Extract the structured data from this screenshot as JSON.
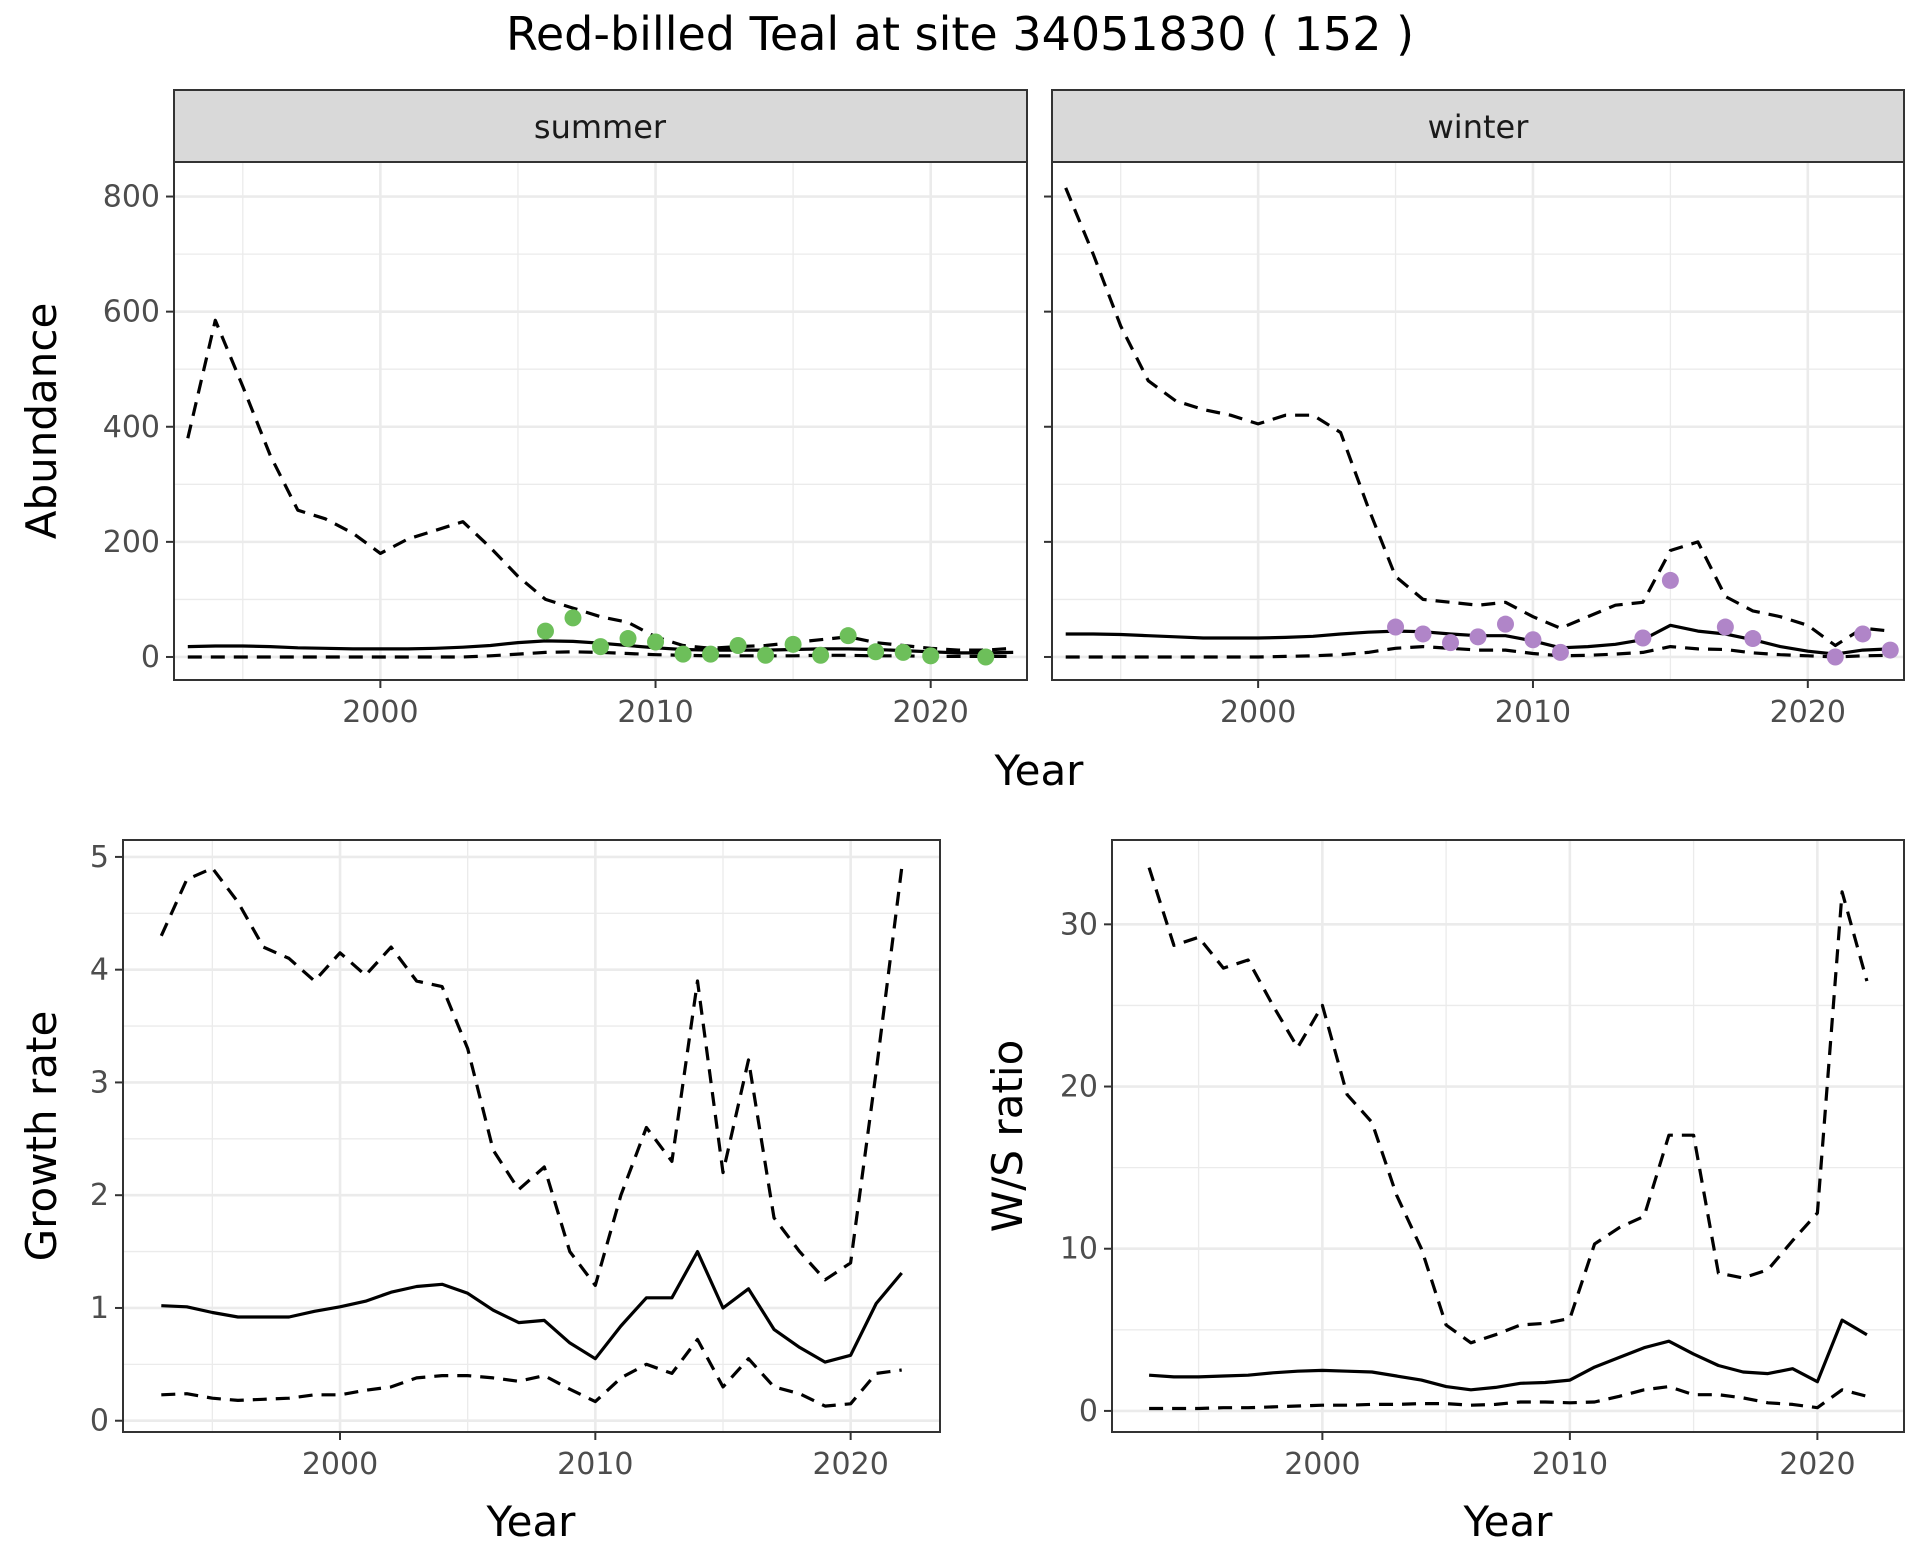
{
  "page": {
    "title": "Red-billed Teal at site 34051830 ( 152 )"
  },
  "chart_data": [
    {
      "type": "line",
      "facet": "summer",
      "xlabel": "Year",
      "ylabel": "Abundance",
      "xlim": [
        1992.5,
        2023.5
      ],
      "ylim": [
        -40,
        860
      ],
      "xticks": [
        2000,
        2010,
        2020
      ],
      "xticks_minor": [
        1995,
        2005,
        2015
      ],
      "yticks": [
        0,
        200,
        400,
        600,
        800
      ],
      "yticks_minor": [
        100,
        300,
        500,
        700
      ],
      "grid": true,
      "point_color": "#6dbf5a",
      "series": [
        {
          "style": "dashed",
          "x": [
            1993,
            1994,
            1995,
            1996,
            1997,
            1998,
            1999,
            2000,
            2001,
            2002,
            2003,
            2004,
            2005,
            2006,
            2007,
            2008,
            2009,
            2010,
            2011,
            2012,
            2013,
            2014,
            2015,
            2016,
            2017,
            2018,
            2019,
            2020,
            2021,
            2022,
            2023
          ],
          "values": [
            380,
            585,
            470,
            350,
            255,
            240,
            215,
            180,
            205,
            220,
            235,
            190,
            140,
            100,
            85,
            70,
            60,
            35,
            20,
            15,
            18,
            20,
            25,
            30,
            35,
            25,
            20,
            15,
            12,
            12,
            15
          ]
        },
        {
          "style": "solid",
          "x": [
            1993,
            1994,
            1995,
            1996,
            1997,
            1998,
            1999,
            2000,
            2001,
            2002,
            2003,
            2004,
            2005,
            2006,
            2007,
            2008,
            2009,
            2010,
            2011,
            2012,
            2013,
            2014,
            2015,
            2016,
            2017,
            2018,
            2019,
            2020,
            2021,
            2022,
            2023
          ],
          "values": [
            18,
            19,
            19,
            18,
            16,
            15,
            14,
            14,
            14,
            15,
            17,
            20,
            25,
            28,
            27,
            24,
            20,
            16,
            13,
            12,
            12,
            12,
            13,
            14,
            14,
            13,
            11,
            9,
            7,
            7,
            8
          ]
        },
        {
          "style": "dashed",
          "x": [
            1993,
            1994,
            1995,
            1996,
            1997,
            1998,
            1999,
            2000,
            2001,
            2002,
            2003,
            2004,
            2005,
            2006,
            2007,
            2008,
            2009,
            2010,
            2011,
            2012,
            2013,
            2014,
            2015,
            2016,
            2017,
            2018,
            2019,
            2020,
            2021,
            2022,
            2023
          ],
          "values": [
            0,
            0,
            0,
            0,
            0,
            0,
            0,
            0,
            0,
            0,
            0,
            2,
            5,
            8,
            9,
            8,
            6,
            4,
            3,
            2,
            2,
            2,
            2,
            3,
            3,
            2,
            2,
            1,
            1,
            1,
            1
          ]
        }
      ],
      "points": {
        "x": [
          2006,
          2007,
          2008,
          2009,
          2010,
          2011,
          2012,
          2013,
          2014,
          2015,
          2016,
          2017,
          2018,
          2019,
          2020,
          2022
        ],
        "values": [
          45,
          68,
          18,
          32,
          26,
          5,
          5,
          20,
          3,
          22,
          3,
          37,
          9,
          8,
          2,
          0
        ]
      }
    },
    {
      "type": "line",
      "facet": "winter",
      "xlabel": "Year",
      "ylabel": "Abundance",
      "xlim": [
        1992.5,
        2023.5
      ],
      "ylim": [
        -40,
        860
      ],
      "xticks": [
        2000,
        2010,
        2020
      ],
      "xticks_minor": [
        1995,
        2005,
        2015
      ],
      "yticks": [
        0,
        200,
        400,
        600,
        800
      ],
      "yticks_minor": [
        100,
        300,
        500,
        700
      ],
      "grid": true,
      "point_color": "#b085c8",
      "series": [
        {
          "style": "dashed",
          "x": [
            1993,
            1994,
            1995,
            1996,
            1997,
            1998,
            1999,
            2000,
            2001,
            2002,
            2003,
            2004,
            2005,
            2006,
            2007,
            2008,
            2009,
            2010,
            2011,
            2012,
            2013,
            2014,
            2015,
            2016,
            2017,
            2018,
            2019,
            2020,
            2021,
            2022,
            2023
          ],
          "values": [
            815,
            700,
            575,
            480,
            445,
            430,
            420,
            405,
            420,
            420,
            390,
            260,
            140,
            100,
            95,
            90,
            95,
            70,
            50,
            70,
            90,
            95,
            185,
            200,
            105,
            80,
            70,
            55,
            20,
            50,
            45
          ]
        },
        {
          "style": "solid",
          "x": [
            1993,
            1994,
            1995,
            1996,
            1997,
            1998,
            1999,
            2000,
            2001,
            2002,
            2003,
            2004,
            2005,
            2006,
            2007,
            2008,
            2009,
            2010,
            2011,
            2012,
            2013,
            2014,
            2015,
            2016,
            2017,
            2018,
            2019,
            2020,
            2021,
            2022,
            2023
          ],
          "values": [
            40,
            40,
            39,
            37,
            35,
            33,
            33,
            33,
            34,
            36,
            40,
            43,
            45,
            44,
            40,
            37,
            37,
            28,
            16,
            18,
            22,
            30,
            55,
            45,
            40,
            30,
            18,
            10,
            5,
            12,
            14
          ]
        },
        {
          "style": "dashed",
          "x": [
            1993,
            1994,
            1995,
            1996,
            1997,
            1998,
            1999,
            2000,
            2001,
            2002,
            2003,
            2004,
            2005,
            2006,
            2007,
            2008,
            2009,
            2010,
            2011,
            2012,
            2013,
            2014,
            2015,
            2016,
            2017,
            2018,
            2019,
            2020,
            2021,
            2022,
            2023
          ],
          "values": [
            0,
            0,
            0,
            0,
            0,
            0,
            0,
            0,
            1,
            2,
            4,
            8,
            15,
            18,
            15,
            12,
            12,
            6,
            2,
            3,
            5,
            8,
            18,
            14,
            13,
            7,
            4,
            2,
            0,
            2,
            3
          ]
        }
      ],
      "points": {
        "x": [
          2005,
          2006,
          2007,
          2008,
          2009,
          2010,
          2011,
          2014,
          2015,
          2017,
          2018,
          2021,
          2022,
          2023
        ],
        "values": [
          52,
          40,
          25,
          35,
          57,
          30,
          8,
          33,
          133,
          52,
          32,
          0,
          40,
          12
        ]
      }
    },
    {
      "type": "line",
      "xlabel": "Year",
      "ylabel": "Growth rate",
      "xlim": [
        1991.5,
        2023.5
      ],
      "ylim": [
        -0.1,
        5.15
      ],
      "xticks": [
        2000,
        2010,
        2020
      ],
      "xticks_minor": [
        1995,
        2005,
        2015
      ],
      "yticks": [
        0,
        1,
        2,
        3,
        4,
        5
      ],
      "yticks_minor": [
        0.5,
        1.5,
        2.5,
        3.5,
        4.5
      ],
      "grid": true,
      "series": [
        {
          "style": "dashed",
          "x": [
            1993,
            1994,
            1995,
            1996,
            1997,
            1998,
            1999,
            2000,
            2001,
            2002,
            2003,
            2004,
            2005,
            2006,
            2007,
            2008,
            2009,
            2010,
            2011,
            2012,
            2013,
            2014,
            2015,
            2016,
            2017,
            2018,
            2019,
            2020,
            2021,
            2022
          ],
          "values": [
            4.3,
            4.8,
            4.9,
            4.6,
            4.2,
            4.1,
            3.9,
            4.15,
            3.95,
            4.2,
            3.9,
            3.85,
            3.3,
            2.4,
            2.05,
            2.25,
            1.5,
            1.2,
            2.0,
            2.6,
            2.3,
            3.9,
            2.2,
            3.2,
            1.8,
            1.5,
            1.25,
            1.4,
            3.1,
            4.9
          ]
        },
        {
          "style": "solid",
          "x": [
            1993,
            1994,
            1995,
            1996,
            1997,
            1998,
            1999,
            2000,
            2001,
            2002,
            2003,
            2004,
            2005,
            2006,
            2007,
            2008,
            2009,
            2010,
            2011,
            2012,
            2013,
            2014,
            2015,
            2016,
            2017,
            2018,
            2019,
            2020,
            2021,
            2022
          ],
          "values": [
            1.02,
            1.01,
            0.96,
            0.92,
            0.92,
            0.92,
            0.97,
            1.01,
            1.06,
            1.14,
            1.19,
            1.21,
            1.13,
            0.98,
            0.87,
            0.89,
            0.69,
            0.55,
            0.84,
            1.09,
            1.09,
            1.5,
            1.0,
            1.17,
            0.81,
            0.65,
            0.52,
            0.58,
            1.04,
            1.31
          ]
        },
        {
          "style": "dashed",
          "x": [
            1993,
            1994,
            1995,
            1996,
            1997,
            1998,
            1999,
            2000,
            2001,
            2002,
            2003,
            2004,
            2005,
            2006,
            2007,
            2008,
            2009,
            2010,
            2011,
            2012,
            2013,
            2014,
            2015,
            2016,
            2017,
            2018,
            2019,
            2020,
            2021,
            2022
          ],
          "values": [
            0.23,
            0.24,
            0.2,
            0.18,
            0.19,
            0.2,
            0.23,
            0.23,
            0.27,
            0.3,
            0.38,
            0.4,
            0.4,
            0.38,
            0.35,
            0.4,
            0.28,
            0.17,
            0.38,
            0.5,
            0.42,
            0.72,
            0.3,
            0.55,
            0.3,
            0.24,
            0.13,
            0.15,
            0.42,
            0.45
          ]
        }
      ]
    },
    {
      "type": "line",
      "xlabel": "Year",
      "ylabel": "W/S ratio",
      "xlim": [
        1991.5,
        2023.5
      ],
      "ylim": [
        -1.3,
        35.2
      ],
      "xticks": [
        2000,
        2010,
        2020
      ],
      "xticks_minor": [
        1995,
        2005,
        2015
      ],
      "yticks": [
        0,
        10,
        20,
        30
      ],
      "yticks_minor": [
        5,
        15,
        25
      ],
      "grid": true,
      "series": [
        {
          "style": "dashed",
          "x": [
            1993,
            1994,
            1995,
            1996,
            1997,
            1998,
            1999,
            2000,
            2001,
            2002,
            2003,
            2004,
            2005,
            2006,
            2007,
            2008,
            2009,
            2010,
            2011,
            2012,
            2013,
            2014,
            2015,
            2016,
            2017,
            2018,
            2019,
            2020,
            2021,
            2022
          ],
          "values": [
            33.5,
            28.7,
            29.2,
            27.3,
            27.8,
            25.0,
            22.4,
            25.0,
            19.5,
            17.8,
            13.3,
            10.0,
            5.3,
            4.2,
            4.7,
            5.3,
            5.4,
            5.7,
            10.3,
            11.3,
            12.0,
            17.0,
            17.0,
            8.5,
            8.2,
            8.7,
            10.5,
            12.2,
            32.0,
            26.5
          ]
        },
        {
          "style": "solid",
          "x": [
            1993,
            1994,
            1995,
            1996,
            1997,
            1998,
            1999,
            2000,
            2001,
            2002,
            2003,
            2004,
            2005,
            2006,
            2007,
            2008,
            2009,
            2010,
            2011,
            2012,
            2013,
            2014,
            2015,
            2016,
            2017,
            2018,
            2019,
            2020,
            2021,
            2022
          ],
          "values": [
            2.2,
            2.1,
            2.1,
            2.15,
            2.2,
            2.35,
            2.45,
            2.5,
            2.45,
            2.4,
            2.15,
            1.9,
            1.5,
            1.3,
            1.45,
            1.7,
            1.75,
            1.9,
            2.7,
            3.3,
            3.9,
            4.3,
            3.5,
            2.8,
            2.4,
            2.3,
            2.6,
            1.8,
            5.6,
            4.7
          ]
        },
        {
          "style": "dashed",
          "x": [
            1993,
            1994,
            1995,
            1996,
            1997,
            1998,
            1999,
            2000,
            2001,
            2002,
            2003,
            2004,
            2005,
            2006,
            2007,
            2008,
            2009,
            2010,
            2011,
            2012,
            2013,
            2014,
            2015,
            2016,
            2017,
            2018,
            2019,
            2020,
            2021,
            2022
          ],
          "values": [
            0.15,
            0.15,
            0.15,
            0.2,
            0.2,
            0.25,
            0.3,
            0.35,
            0.35,
            0.4,
            0.4,
            0.45,
            0.45,
            0.35,
            0.4,
            0.55,
            0.55,
            0.5,
            0.55,
            0.9,
            1.3,
            1.5,
            1.0,
            1.0,
            0.8,
            0.5,
            0.4,
            0.2,
            1.3,
            0.9
          ]
        }
      ]
    }
  ]
}
